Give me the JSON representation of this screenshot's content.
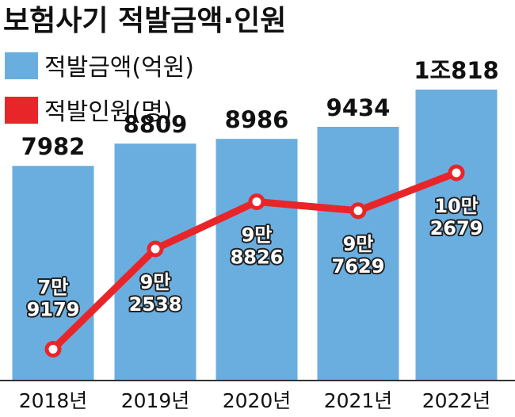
{
  "chart_data": {
    "type": "bar",
    "title": "보험사기 적발금액·인원",
    "categories": [
      "2018년",
      "2019년",
      "2020년",
      "2021년",
      "2022년"
    ],
    "series": [
      {
        "name": "적발금액(억원)",
        "kind": "bar",
        "color": "#6aaee0",
        "values": [
          7982,
          8809,
          8986,
          9434,
          10818
        ],
        "labels": [
          "7982",
          "8809",
          "8986",
          "9434",
          "1조818"
        ]
      },
      {
        "name": "적발인원(명)",
        "kind": "line",
        "color": "#e8262a",
        "values": [
          79179,
          92538,
          98826,
          97629,
          102679
        ],
        "labels": [
          [
            "7만",
            "9179"
          ],
          [
            "9만",
            "2538"
          ],
          [
            "9만",
            "8826"
          ],
          [
            "9만",
            "7629"
          ],
          [
            "10만",
            "2679"
          ]
        ]
      }
    ],
    "legend": "top-left",
    "grid": false
  }
}
